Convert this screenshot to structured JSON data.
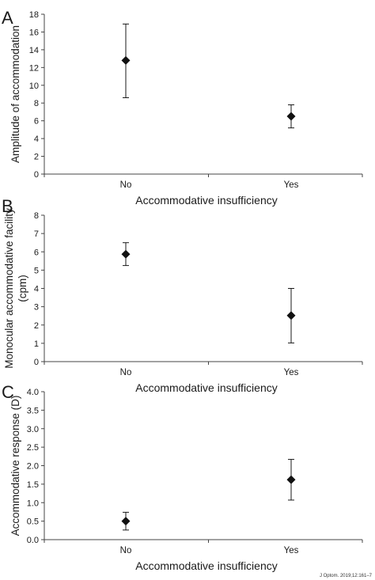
{
  "citation": "J Optom. 2019;12:161–7",
  "chart_data": [
    {
      "type": "scatter",
      "panel": "A",
      "xlabel": "Accommodative insufficiency",
      "ylabel": [
        "Amplitude of accommodation"
      ],
      "categories": [
        "No",
        "Yes"
      ],
      "ylim": [
        0,
        18
      ],
      "yticks": [
        0,
        2,
        4,
        6,
        8,
        10,
        12,
        14,
        16,
        18
      ],
      "ytick_labels": [
        "0",
        "2",
        "4",
        "6",
        "8",
        "10",
        "12",
        "14",
        "16",
        "18"
      ],
      "points": [
        {
          "category": "No",
          "y": 12.8,
          "err_low": 8.6,
          "err_high": 16.9
        },
        {
          "category": "Yes",
          "y": 6.5,
          "err_low": 5.2,
          "err_high": 7.8
        }
      ],
      "marker": "diamond",
      "grid": false,
      "legend": "none"
    },
    {
      "type": "scatter",
      "panel": "B",
      "xlabel": "Accommodative insufficiency",
      "ylabel": [
        "Monocular accommodative facility",
        "(cpm)"
      ],
      "categories": [
        "No",
        "Yes"
      ],
      "ylim": [
        0,
        8
      ],
      "yticks": [
        0,
        1,
        2,
        3,
        4,
        5,
        6,
        7,
        8
      ],
      "ytick_labels": [
        "0",
        "1",
        "2",
        "3",
        "4",
        "5",
        "6",
        "7",
        "8"
      ],
      "points": [
        {
          "category": "No",
          "y": 5.87,
          "err_low": 5.25,
          "err_high": 6.5
        },
        {
          "category": "Yes",
          "y": 2.52,
          "err_low": 1.02,
          "err_high": 4.0
        }
      ],
      "marker": "diamond",
      "grid": false,
      "legend": "none"
    },
    {
      "type": "scatter",
      "panel": "C",
      "xlabel": "Accommodative insufficiency",
      "ylabel": [
        "Accommodative response (D)"
      ],
      "categories": [
        "No",
        "Yes"
      ],
      "ylim": [
        0,
        4
      ],
      "yticks": [
        0,
        0.5,
        1,
        1.5,
        2,
        2.5,
        3,
        3.5,
        4
      ],
      "ytick_labels": [
        "0.0",
        "0.5",
        "1.0",
        "1.5",
        "2.0",
        "2.5",
        "3.0",
        "3.5",
        "4.0"
      ],
      "points": [
        {
          "category": "No",
          "y": 0.5,
          "err_low": 0.26,
          "err_high": 0.74
        },
        {
          "category": "Yes",
          "y": 1.62,
          "err_low": 1.07,
          "err_high": 2.17
        }
      ],
      "marker": "diamond",
      "grid": false,
      "legend": "none"
    }
  ]
}
